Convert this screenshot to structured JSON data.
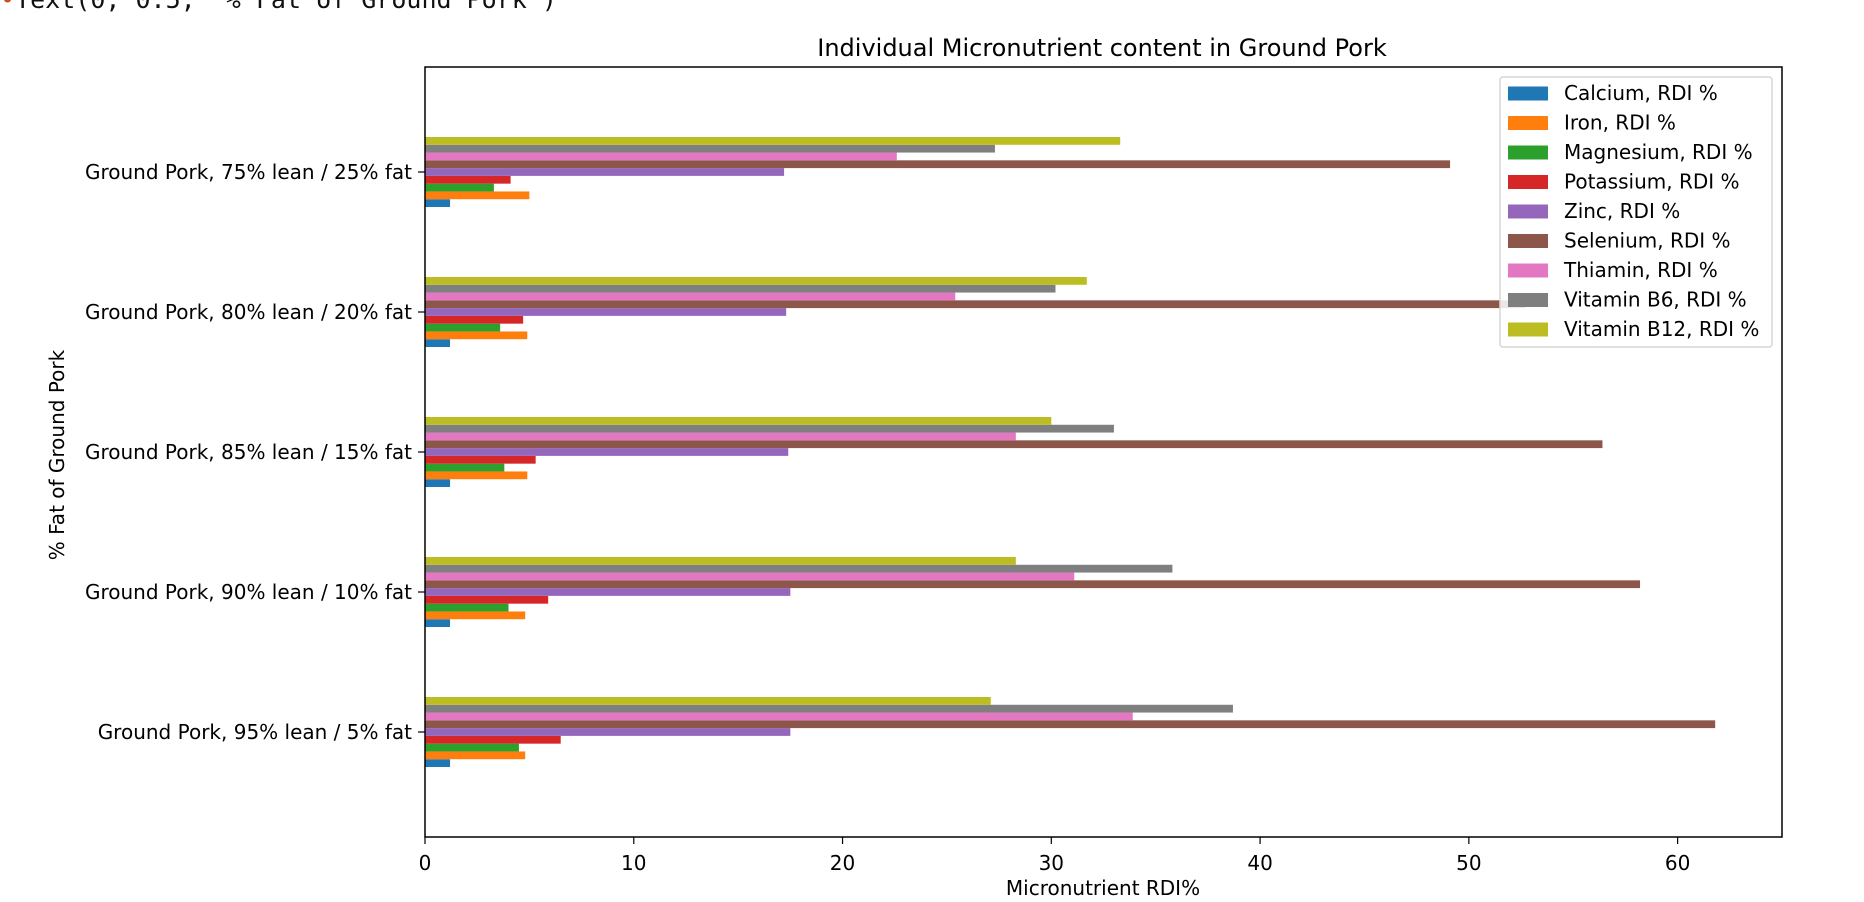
{
  "code_fragment": {
    "marker": "•",
    "text": "Text(0, 0.5, '% Fat of Ground Pork')"
  },
  "chart_data": {
    "type": "bar",
    "orientation": "horizontal",
    "title": "Individual Micronutrient content in Ground Pork",
    "xlabel": "Micronutrient RDI%",
    "ylabel": "% Fat of Ground Pork",
    "xlim": [
      0,
      65
    ],
    "x_ticks": [
      0,
      10,
      20,
      30,
      40,
      50,
      60
    ],
    "grid": false,
    "legend_placement": "top-right",
    "categories": [
      "Ground Pork, 95% lean / 5% fat",
      "Ground Pork, 90% lean / 10% fat",
      "Ground Pork, 85% lean / 15% fat",
      "Ground Pork, 80% lean / 20% fat",
      "Ground Pork, 75% lean / 25% fat"
    ],
    "series": [
      {
        "name": "Calcium, RDI %",
        "color": "#1f77b4",
        "values": [
          1.2,
          1.2,
          1.2,
          1.2,
          1.2
        ]
      },
      {
        "name": "Iron, RDI %",
        "color": "#ff7f0e",
        "values": [
          4.8,
          4.8,
          4.9,
          4.9,
          5.0
        ]
      },
      {
        "name": "Magnesium, RDI %",
        "color": "#2ca02c",
        "values": [
          4.5,
          4.0,
          3.8,
          3.6,
          3.3
        ]
      },
      {
        "name": "Potassium, RDI %",
        "color": "#d62728",
        "values": [
          6.5,
          5.9,
          5.3,
          4.7,
          4.1
        ]
      },
      {
        "name": "Zinc, RDI %",
        "color": "#9467bd",
        "values": [
          17.5,
          17.5,
          17.4,
          17.3,
          17.2
        ]
      },
      {
        "name": "Selenium, RDI %",
        "color": "#8c564b",
        "values": [
          61.8,
          58.2,
          56.4,
          52.7,
          49.1
        ]
      },
      {
        "name": "Thiamin, RDI %",
        "color": "#e377c2",
        "values": [
          33.9,
          31.1,
          28.3,
          25.4,
          22.6
        ]
      },
      {
        "name": "Vitamin B6, RDI %",
        "color": "#7f7f7f",
        "values": [
          38.7,
          35.8,
          33.0,
          30.2,
          27.3
        ]
      },
      {
        "name": "Vitamin B12, RDI %",
        "color": "#bcbd22",
        "values": [
          27.1,
          28.3,
          30.0,
          31.7,
          33.3
        ]
      }
    ]
  }
}
